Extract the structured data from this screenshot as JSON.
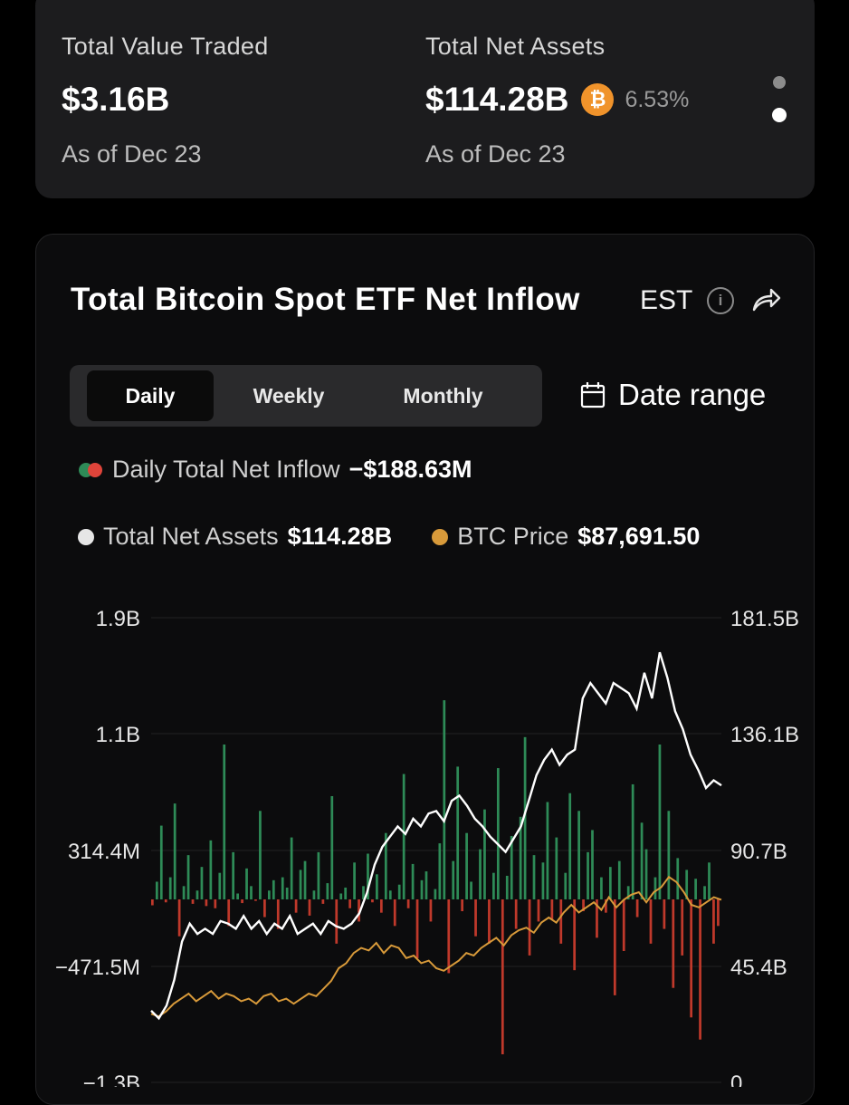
{
  "stats": {
    "value_traded": {
      "label": "Total Value Traded",
      "value": "$3.16B",
      "asof": "As of Dec 23"
    },
    "net_assets": {
      "label": "Total Net Assets",
      "value": "$114.28B",
      "pct": "6.53%",
      "asof": "As of Dec 23"
    }
  },
  "chart_header": {
    "title": "Total Bitcoin Spot ETF Net Inflow",
    "timezone": "EST"
  },
  "tabs": [
    {
      "label": "Daily"
    },
    {
      "label": "Weekly"
    },
    {
      "label": "Monthly"
    }
  ],
  "date_range_label": "Date range",
  "legend": {
    "net_inflow": {
      "label": "Daily Total Net Inflow",
      "value": "−$188.63M"
    },
    "net_assets": {
      "label": "Total Net Assets",
      "value": "$114.28B"
    },
    "btc_price": {
      "label": "BTC Price",
      "value": "$87,691.50"
    }
  },
  "colors": {
    "inflow_positive": "#2e8b57",
    "inflow_negative": "#c0392b",
    "net_assets_line": "#ffffff",
    "btc_price_line": "#d89a3a",
    "btc_badge": "#f0932b"
  },
  "chart_data": {
    "type": "bar+line",
    "title": "Total Bitcoin Spot ETF Net Inflow",
    "left_axis": {
      "ticks": [
        "1.9B",
        "1.1B",
        "314.4M",
        "−471.5M",
        "−1.3B"
      ],
      "ylim": [
        -1300000000,
        1900000000
      ]
    },
    "right_axis": {
      "ticks": [
        "181.5B",
        "136.1B",
        "90.7B",
        "45.4B",
        "0"
      ],
      "ylim": [
        0,
        181500000000
      ]
    },
    "series": [
      {
        "name": "Daily Total Net Inflow (M$)",
        "type": "bar",
        "values": [
          -40,
          120,
          500,
          -20,
          150,
          650,
          -250,
          90,
          300,
          -30,
          60,
          220,
          -45,
          400,
          -60,
          180,
          1050,
          -180,
          320,
          40,
          -25,
          210,
          90,
          -10,
          600,
          -120,
          60,
          130,
          -200,
          150,
          80,
          420,
          -90,
          200,
          260,
          -110,
          60,
          320,
          -30,
          110,
          700,
          -300,
          40,
          80,
          -60,
          250,
          -150,
          90,
          310,
          -20,
          170,
          -90,
          450,
          60,
          -180,
          100,
          850,
          -60,
          240,
          -400,
          130,
          190,
          -150,
          70,
          380,
          1350,
          -500,
          260,
          900,
          -80,
          450,
          120,
          -250,
          340,
          610,
          -300,
          180,
          890,
          -1050,
          160,
          430,
          -200,
          560,
          1100,
          -380,
          300,
          -150,
          250,
          660,
          -140,
          420,
          -300,
          180,
          720,
          -480,
          600,
          -80,
          320,
          470,
          -260,
          150,
          -90,
          220,
          -650,
          260,
          -350,
          90,
          780,
          -120,
          520,
          340,
          -300,
          150,
          1050,
          -200,
          600,
          -600,
          280,
          -380,
          200,
          -800,
          140,
          -950,
          90,
          250,
          -300,
          -180
        ]
      },
      {
        "name": "Total Net Assets (B$)",
        "type": "line",
        "values": [
          28,
          25,
          30,
          40,
          55,
          62,
          58,
          60,
          58,
          63,
          62,
          60,
          65,
          60,
          63,
          58,
          62,
          60,
          65,
          58,
          60,
          62,
          58,
          63,
          61,
          60,
          62,
          66,
          74,
          85,
          92,
          96,
          100,
          97,
          103,
          100,
          105,
          106,
          102,
          110,
          112,
          108,
          103,
          100,
          96,
          93,
          90,
          95,
          100,
          110,
          120,
          126,
          130,
          124,
          128,
          130,
          150,
          156,
          152,
          148,
          156,
          154,
          152,
          146,
          160,
          150,
          168,
          158,
          145,
          138,
          128,
          122,
          115,
          118,
          116
        ]
      },
      {
        "name": "BTC Price ($K)",
        "type": "line",
        "values": [
          42,
          41,
          43,
          46,
          48,
          50,
          47,
          49,
          51,
          48,
          50,
          49,
          47,
          48,
          46,
          49,
          50,
          47,
          48,
          46,
          48,
          50,
          49,
          52,
          55,
          60,
          62,
          66,
          68,
          67,
          70,
          66,
          69,
          68,
          64,
          65,
          62,
          63,
          60,
          59,
          61,
          63,
          66,
          65,
          68,
          70,
          72,
          69,
          73,
          75,
          76,
          74,
          78,
          80,
          78,
          82,
          85,
          82,
          84,
          86,
          83,
          88,
          84,
          87,
          89,
          90,
          86,
          90,
          92,
          96,
          94,
          90,
          85,
          84,
          86,
          88,
          87
        ]
      }
    ]
  }
}
